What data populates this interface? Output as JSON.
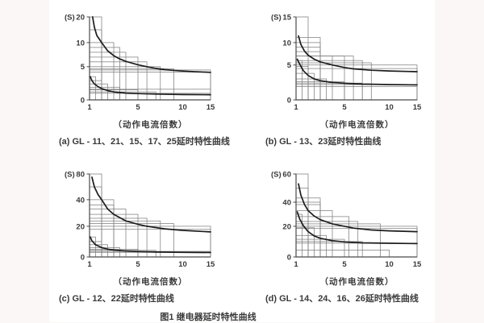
{
  "page": {
    "figure_caption": "图1 继电器延时特性曲线",
    "background": "#faf7f6",
    "paper": "#ffffff"
  },
  "style": {
    "box_line_color": "#7f7f7f",
    "curve_color": "#1c1c1c",
    "axis_color": "#4a4a4a",
    "text_color": "#3a3a3a"
  },
  "chart_data": [
    {
      "type": "line",
      "caption": "(a) GL - 11、21、15、17、25延时特性曲线",
      "x_label": "（动作电流倍数）",
      "y_unit": "(S)",
      "x_ticks": [
        1,
        5,
        10,
        15
      ],
      "y_ticks": [
        0,
        5,
        10,
        20
      ],
      "x_range": [
        1,
        15
      ],
      "y_range": [
        0,
        20
      ],
      "grid": true,
      "legend": false,
      "x_tick_fracs": [
        [
          1,
          0
        ],
        [
          5,
          0.4
        ],
        [
          10,
          0.77
        ],
        [
          15,
          1
        ]
      ],
      "y_tick_fracs": [
        [
          0,
          0
        ],
        [
          5,
          0.4
        ],
        [
          10,
          0.69
        ],
        [
          20,
          1
        ]
      ],
      "tolerance_boxes": {
        "upper": [
          [
            2,
            20
          ],
          [
            2,
            15
          ],
          [
            3,
            10
          ],
          [
            3.5,
            9
          ],
          [
            4,
            8
          ],
          [
            5,
            7
          ],
          [
            6,
            6
          ],
          [
            7.5,
            5
          ],
          [
            9,
            4.7
          ],
          [
            15,
            4.5
          ],
          [
            15,
            4.2
          ]
        ],
        "lower": [
          [
            1.5,
            3.5
          ],
          [
            2,
            2.9
          ],
          [
            2.5,
            2.4
          ],
          [
            3.5,
            1.9
          ],
          [
            5,
            1.5
          ],
          [
            7,
            1.2
          ],
          [
            15,
            1.6
          ],
          [
            15,
            1.0
          ]
        ]
      },
      "series": [
        {
          "name": "upper-curve",
          "points": [
            [
              1.25,
              20
            ],
            [
              1.4,
              16
            ],
            [
              1.6,
              12.8
            ],
            [
              2,
              10
            ],
            [
              2.5,
              8.3
            ],
            [
              3,
              7.3
            ],
            [
              3.5,
              6.6
            ],
            [
              4,
              6.1
            ],
            [
              5,
              5.4
            ],
            [
              6,
              5
            ],
            [
              7,
              4.75
            ],
            [
              8,
              4.55
            ],
            [
              10,
              4.35
            ],
            [
              12,
              4.25
            ],
            [
              15,
              4.15
            ]
          ]
        },
        {
          "name": "lower-curve",
          "points": [
            [
              1.05,
              3.5
            ],
            [
              1.2,
              2.9
            ],
            [
              1.4,
              2.4
            ],
            [
              1.7,
              2.0
            ],
            [
              2,
              1.7
            ],
            [
              2.5,
              1.4
            ],
            [
              3,
              1.2
            ],
            [
              4,
              1.02
            ],
            [
              5,
              0.95
            ],
            [
              7,
              0.87
            ],
            [
              10,
              0.8
            ],
            [
              15,
              0.78
            ]
          ]
        }
      ]
    },
    {
      "type": "line",
      "caption": "(b) GL - 13、23延时特性曲线",
      "x_label": "（动作电流倍数）",
      "y_unit": "(S)",
      "x_ticks": [
        1,
        5,
        10,
        15
      ],
      "y_ticks": [
        0,
        5,
        10,
        15
      ],
      "x_range": [
        1,
        15
      ],
      "y_range": [
        0,
        15
      ],
      "grid": true,
      "legend": false,
      "x_tick_fracs": [
        [
          1,
          0
        ],
        [
          5,
          0.4
        ],
        [
          10,
          0.77
        ],
        [
          15,
          1
        ]
      ],
      "y_tick_fracs": [
        [
          0,
          0
        ],
        [
          5,
          0.42
        ],
        [
          10,
          0.69
        ],
        [
          15,
          1
        ]
      ],
      "tolerance_boxes": {
        "upper": [
          [
            2,
            15
          ],
          [
            3,
            11
          ],
          [
            3,
            10
          ],
          [
            3,
            9
          ],
          [
            3,
            8
          ],
          [
            4,
            7
          ],
          [
            5,
            7
          ],
          [
            6,
            7
          ],
          [
            7,
            6
          ],
          [
            8,
            5.5
          ],
          [
            15,
            5
          ],
          [
            15,
            4.5
          ]
        ],
        "lower": [
          [
            1.5,
            6
          ],
          [
            2,
            4.8
          ],
          [
            2.5,
            3.8
          ],
          [
            3.5,
            3
          ],
          [
            5,
            2.6
          ],
          [
            7,
            2.4
          ],
          [
            15,
            2.2
          ],
          [
            15,
            1.9
          ]
        ]
      },
      "series": [
        {
          "name": "upper-curve",
          "points": [
            [
              1.2,
              11.3
            ],
            [
              1.4,
              9.6
            ],
            [
              1.7,
              8.1
            ],
            [
              2,
              7.2
            ],
            [
              2.5,
              6.3
            ],
            [
              3,
              5.7
            ],
            [
              4,
              5
            ],
            [
              5,
              4.65
            ],
            [
              6,
              4.45
            ],
            [
              8,
              4.25
            ],
            [
              10,
              4.15
            ],
            [
              15,
              4.05
            ]
          ]
        },
        {
          "name": "lower-curve",
          "points": [
            [
              1.1,
              6.3
            ],
            [
              1.3,
              5.2
            ],
            [
              1.6,
              4.2
            ],
            [
              2,
              3.5
            ],
            [
              2.5,
              3.0
            ],
            [
              3,
              2.75
            ],
            [
              4,
              2.5
            ],
            [
              5,
              2.38
            ],
            [
              7,
              2.27
            ],
            [
              10,
              2.2
            ],
            [
              15,
              2.15
            ]
          ]
        }
      ]
    },
    {
      "type": "line",
      "caption": "(c) GL - 12、22延时特性曲线",
      "x_label": "（动作电流倍数）",
      "y_unit": "(S)",
      "x_ticks": [
        1,
        5,
        10,
        15
      ],
      "y_ticks": [
        0,
        20,
        40,
        80
      ],
      "x_range": [
        1,
        15
      ],
      "y_range": [
        0,
        80
      ],
      "grid": true,
      "legend": false,
      "x_tick_fracs": [
        [
          1,
          0
        ],
        [
          5,
          0.4
        ],
        [
          10,
          0.77
        ],
        [
          15,
          1
        ]
      ],
      "y_tick_fracs": [
        [
          0,
          0
        ],
        [
          20,
          0.37
        ],
        [
          40,
          0.69
        ],
        [
          80,
          1
        ]
      ],
      "tolerance_boxes": {
        "upper": [
          [
            2,
            80
          ],
          [
            2,
            60
          ],
          [
            3,
            40
          ],
          [
            3,
            36
          ],
          [
            4,
            33
          ],
          [
            5,
            29
          ],
          [
            6,
            26
          ],
          [
            7.5,
            24
          ],
          [
            9,
            22
          ],
          [
            15,
            20
          ],
          [
            15,
            18
          ]
        ],
        "lower": [
          [
            1.5,
            13
          ],
          [
            2,
            10
          ],
          [
            2.5,
            8
          ],
          [
            3.5,
            6
          ],
          [
            5,
            5
          ],
          [
            7,
            4.3
          ],
          [
            15,
            3.6
          ],
          [
            15,
            3
          ]
        ]
      },
      "series": [
        {
          "name": "upper-curve",
          "points": [
            [
              1.2,
              75
            ],
            [
              1.4,
              60
            ],
            [
              1.7,
              48
            ],
            [
              2,
              40
            ],
            [
              2.5,
              33
            ],
            [
              3,
              29
            ],
            [
              4,
              24
            ],
            [
              5,
              21.5
            ],
            [
              6,
              20
            ],
            [
              8,
              18.3
            ],
            [
              10,
              17.3
            ],
            [
              15,
              16.3
            ]
          ]
        },
        {
          "name": "lower-curve",
          "points": [
            [
              1.05,
              13
            ],
            [
              1.2,
              10.5
            ],
            [
              1.5,
              8
            ],
            [
              2,
              6.1
            ],
            [
              2.5,
              5.1
            ],
            [
              3,
              4.5
            ],
            [
              4,
              3.9
            ],
            [
              5,
              3.5
            ],
            [
              7,
              3.2
            ],
            [
              10,
              3.0
            ],
            [
              15,
              2.9
            ]
          ]
        }
      ]
    },
    {
      "type": "line",
      "caption": "(d) GL - 14、24、16、26延时特性曲线",
      "x_label": "（动作电流倍数）",
      "y_unit": "(S)",
      "x_ticks": [
        1,
        5,
        10,
        15
      ],
      "y_ticks": [
        0,
        20,
        40,
        60
      ],
      "x_range": [
        1,
        15
      ],
      "y_range": [
        0,
        60
      ],
      "grid": true,
      "legend": false,
      "x_tick_fracs": [
        [
          1,
          0
        ],
        [
          5,
          0.4
        ],
        [
          10,
          0.77
        ],
        [
          15,
          1
        ]
      ],
      "y_tick_fracs": [
        [
          0,
          0
        ],
        [
          20,
          0.37
        ],
        [
          40,
          0.66
        ],
        [
          60,
          1
        ]
      ],
      "tolerance_boxes": {
        "upper": [
          [
            2,
            60
          ],
          [
            2,
            50
          ],
          [
            3,
            43
          ],
          [
            3,
            40
          ],
          [
            3,
            38
          ],
          [
            4,
            33
          ],
          [
            5.5,
            28
          ],
          [
            6.5,
            24
          ],
          [
            9,
            22
          ],
          [
            15,
            20
          ],
          [
            15,
            18.5
          ]
        ],
        "lower": [
          [
            1.5,
            30
          ],
          [
            2,
            24
          ],
          [
            2.5,
            19
          ],
          [
            3.5,
            14
          ],
          [
            5,
            11.5
          ],
          [
            7,
            10
          ],
          [
            15,
            9
          ],
          [
            10,
            4.5
          ]
        ]
      },
      "series": [
        {
          "name": "upper-curve",
          "points": [
            [
              1.2,
              53
            ],
            [
              1.4,
              45
            ],
            [
              1.7,
              38
            ],
            [
              2,
              33
            ],
            [
              2.5,
              28.5
            ],
            [
              3,
              25.5
            ],
            [
              4,
              22
            ],
            [
              5,
              20
            ],
            [
              6,
              18.8
            ],
            [
              8,
              17.6
            ],
            [
              10,
              17
            ],
            [
              15,
              16.5
            ]
          ]
        },
        {
          "name": "lower-curve",
          "points": [
            [
              1.1,
              32
            ],
            [
              1.3,
              26
            ],
            [
              1.6,
              20.5
            ],
            [
              2,
              16.5
            ],
            [
              2.5,
              13.7
            ],
            [
              3,
              12.2
            ],
            [
              4,
              10.6
            ],
            [
              5,
              9.8
            ],
            [
              7,
              9.2
            ],
            [
              10,
              8.9
            ],
            [
              15,
              8.7
            ]
          ]
        }
      ]
    }
  ]
}
